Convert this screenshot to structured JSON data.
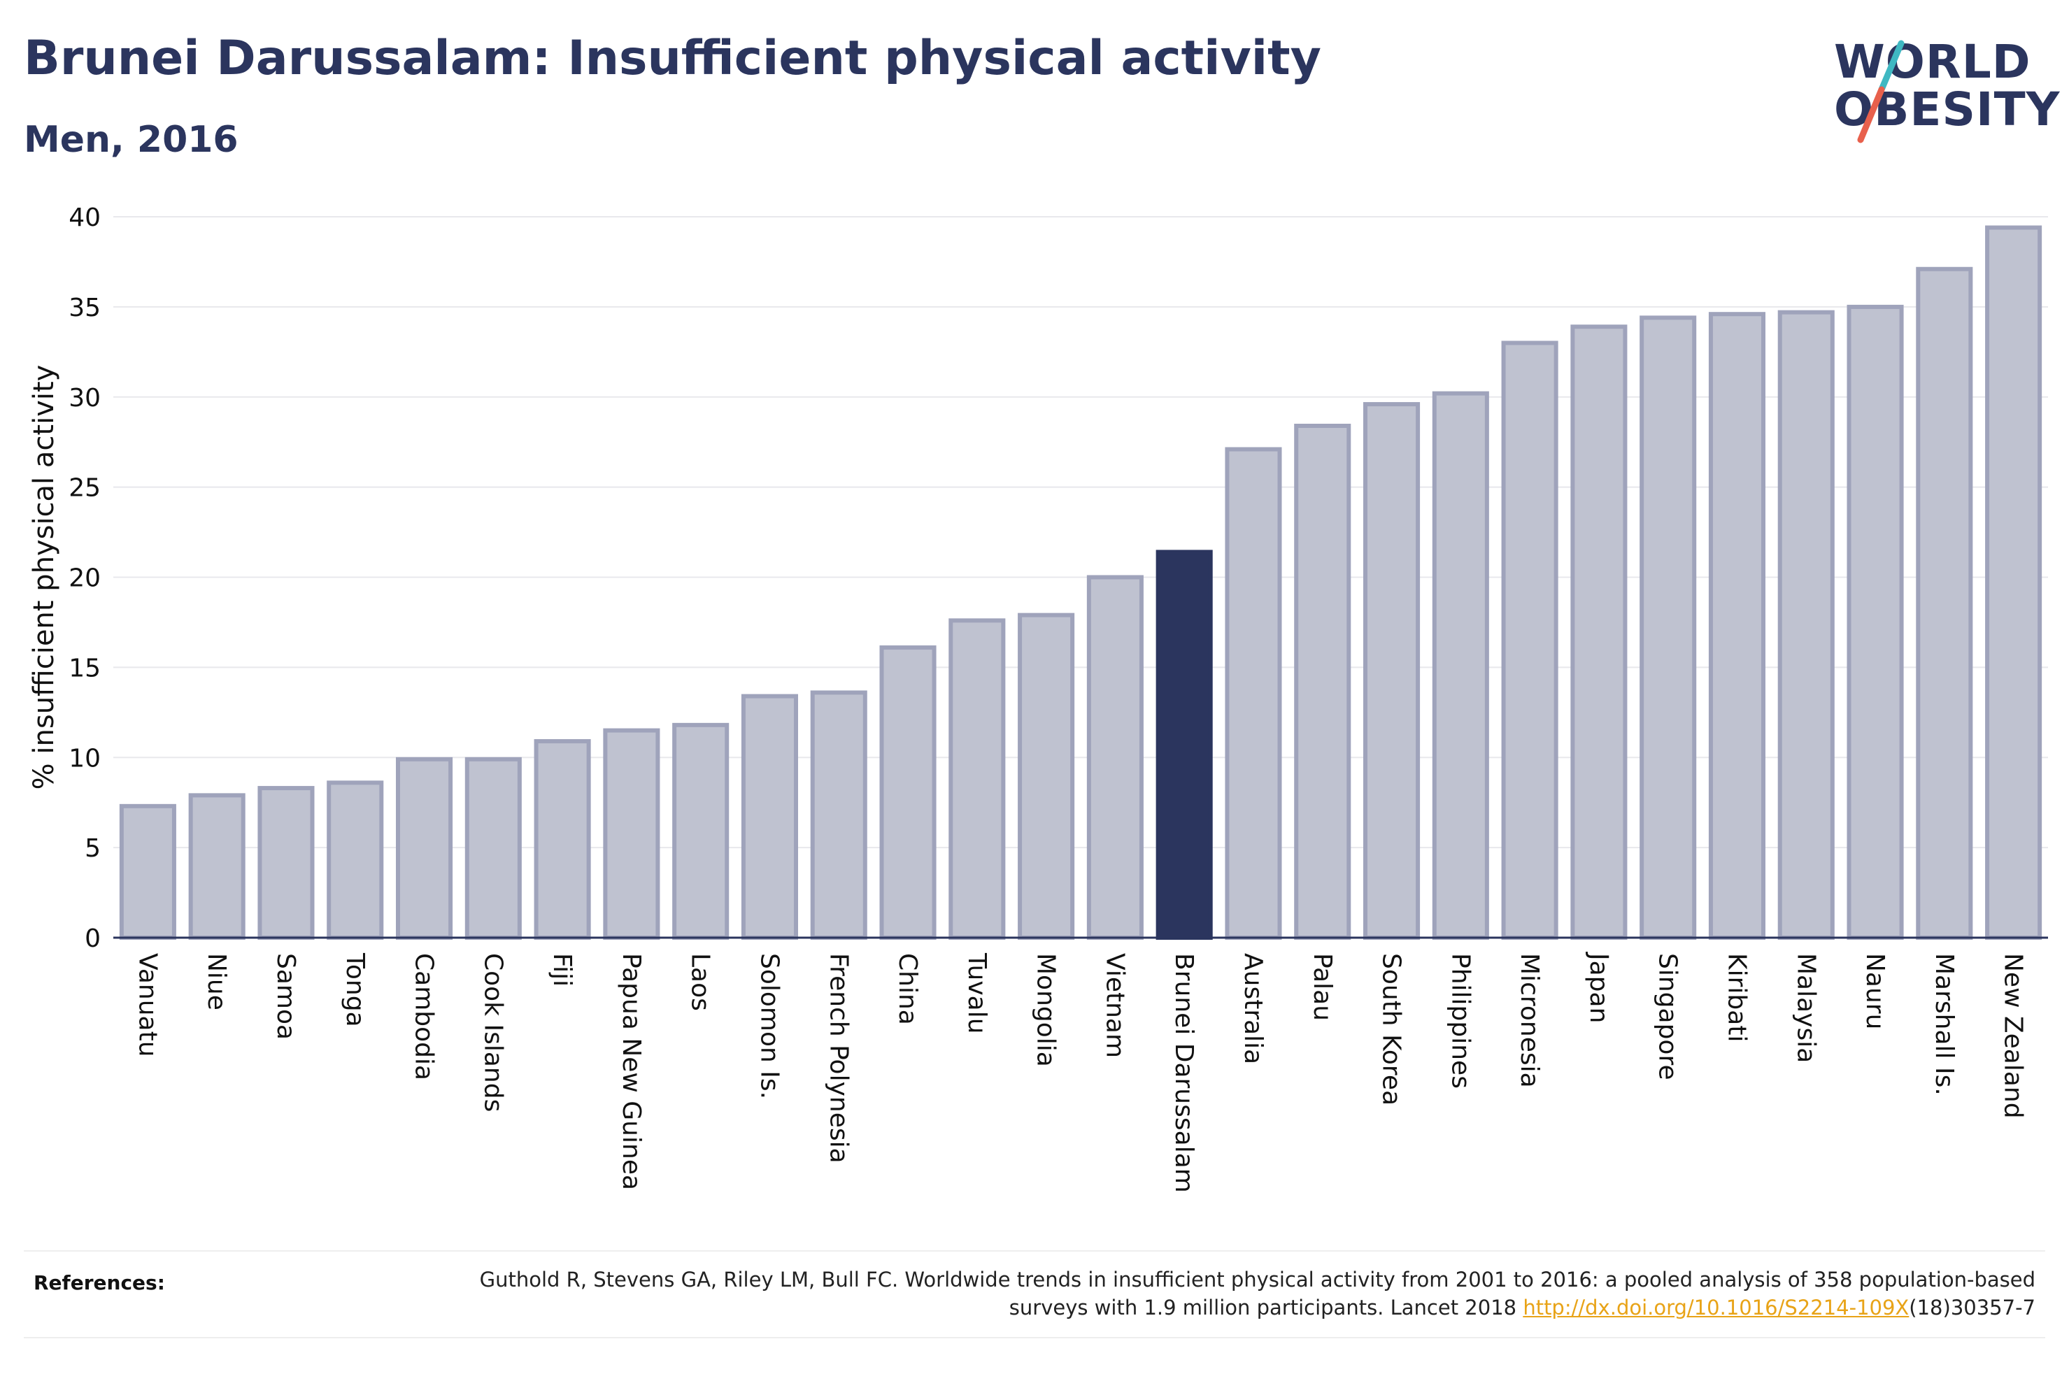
{
  "header": {
    "title": "Brunei Darussalam: Insufficient physical activity",
    "subtitle": "Men, 2016"
  },
  "logo": {
    "line1": "WORLD",
    "line2": "OBESITY",
    "slash_colors": [
      "#3fb8c2",
      "#e8604c"
    ]
  },
  "chart_data": {
    "type": "bar",
    "ylabel": "% insufficient physical activity",
    "xlabel": "",
    "ylim": [
      0,
      40
    ],
    "yticks": [
      0,
      5,
      10,
      15,
      20,
      25,
      30,
      35,
      40
    ],
    "grid": true,
    "highlight": "Brunei Darussalam",
    "colors": {
      "bar": "#bfc2d0",
      "bar_edge": "#9fa3bb",
      "highlight": "#2b355e"
    },
    "categories": [
      "Vanuatu",
      "Niue",
      "Samoa",
      "Tonga",
      "Cambodia",
      "Cook Islands",
      "Fiji",
      "Papua New Guinea",
      "Laos",
      "Solomon Is.",
      "French Polynesia",
      "China",
      "Tuvalu",
      "Mongolia",
      "Vietnam",
      "Brunei Darussalam",
      "Australia",
      "Palau",
      "South Korea",
      "Philippines",
      "Micronesia",
      "Japan",
      "Singapore",
      "Kiribati",
      "Malaysia",
      "Nauru",
      "Marshall Is.",
      "New Zealand"
    ],
    "values": [
      7.3,
      7.9,
      8.3,
      8.6,
      9.9,
      9.9,
      10.9,
      11.5,
      11.8,
      13.4,
      13.6,
      16.1,
      17.6,
      17.9,
      20.0,
      21.4,
      27.1,
      28.4,
      29.6,
      30.2,
      33.0,
      33.9,
      34.4,
      34.6,
      34.7,
      35.0,
      37.1,
      39.4
    ]
  },
  "references": {
    "label": "References:",
    "text_before": "Guthold R, Stevens GA, Riley LM, Bull FC. Worldwide trends in insufficient physical activity from 2001 to 2016: a pooled analysis of 358 population-based surveys with 1.9 million participants. Lancet 2018 ",
    "link": "http://dx.doi.org/10.1016/S2214-109X",
    "text_after": "(18)30357-7"
  }
}
